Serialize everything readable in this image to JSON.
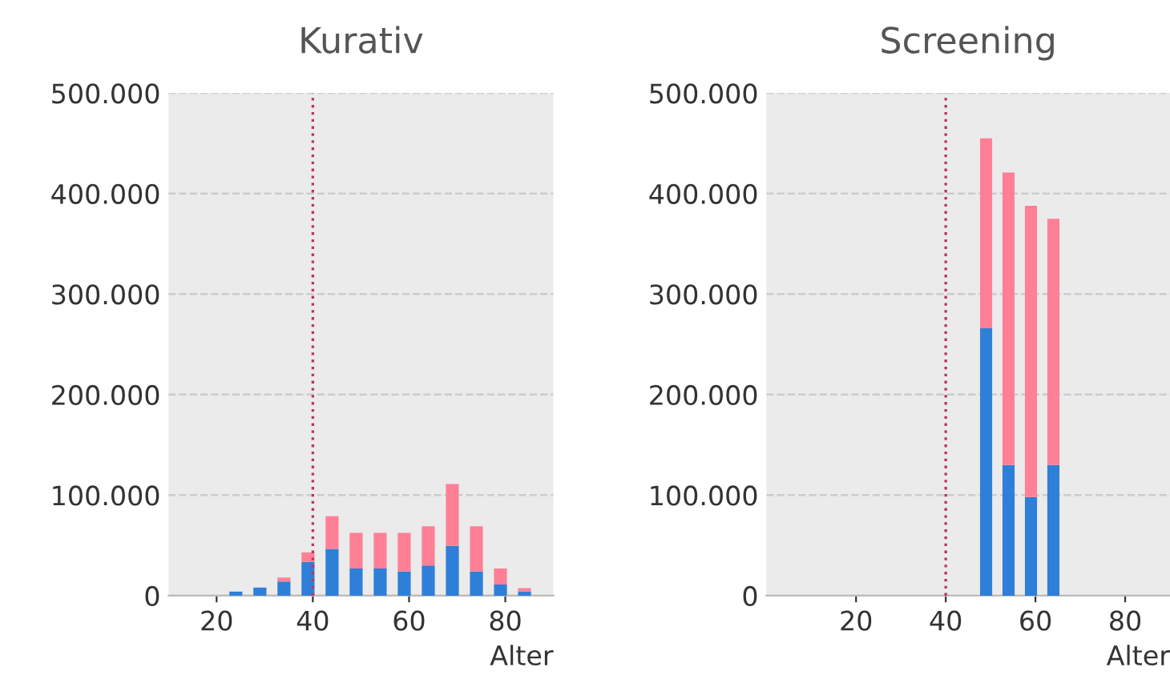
{
  "chart_data": [
    {
      "type": "bar",
      "title": "Kurativ",
      "xlabel": "Alter",
      "stacked": true,
      "x": [
        24,
        29,
        34,
        39,
        44,
        49,
        54,
        59,
        64,
        69,
        74,
        79,
        84
      ],
      "series": [
        {
          "color": "#2e7fd8",
          "values": [
            4000,
            8000,
            14000,
            33500,
            46500,
            27000,
            27000,
            24000,
            30000,
            49500,
            24000,
            11000,
            4000
          ]
        },
        {
          "color": "#ff8096",
          "values": [
            0,
            0,
            4000,
            9500,
            32500,
            35500,
            35500,
            38500,
            39000,
            61500,
            45000,
            16000,
            3500
          ]
        }
      ],
      "xlim": [
        10,
        90
      ],
      "xticks": [
        20,
        40,
        60,
        80
      ],
      "ylim": [
        0,
        500000
      ],
      "yticks": [
        {
          "value": 0,
          "label": "0"
        },
        {
          "value": 100000,
          "label": "100.000"
        },
        {
          "value": 200000,
          "label": "200.000"
        },
        {
          "value": 300000,
          "label": "300.000"
        },
        {
          "value": 400000,
          "label": "400.000"
        },
        {
          "value": 500000,
          "label": "500.000"
        }
      ],
      "grid": "y",
      "ref_lines": [
        {
          "axis": "x",
          "value": 40,
          "color": "#c0306a",
          "line_style": "dotted"
        }
      ]
    },
    {
      "type": "bar",
      "title": "Screening",
      "xlabel": "Alter",
      "stacked": true,
      "x": [
        49,
        54,
        59,
        64
      ],
      "series": [
        {
          "color": "#2e7fd8",
          "values": [
            266000,
            130000,
            98000,
            130000
          ]
        },
        {
          "color": "#ff8096",
          "values": [
            189000,
            291000,
            290000,
            245000
          ]
        }
      ],
      "xlim": [
        0,
        90
      ],
      "xticks": [
        20,
        40,
        60,
        80
      ],
      "ylim": [
        0,
        500000
      ],
      "yticks": [
        {
          "value": 0,
          "label": "0"
        },
        {
          "value": 100000,
          "label": "100.000"
        },
        {
          "value": 200000,
          "label": "200.000"
        },
        {
          "value": 300000,
          "label": "300.000"
        },
        {
          "value": 400000,
          "label": "400.000"
        },
        {
          "value": 500000,
          "label": "500.000"
        }
      ],
      "grid": "y",
      "ref_lines": [
        {
          "axis": "x",
          "value": 40,
          "color": "#c0306a",
          "line_style": "dotted"
        }
      ]
    }
  ]
}
